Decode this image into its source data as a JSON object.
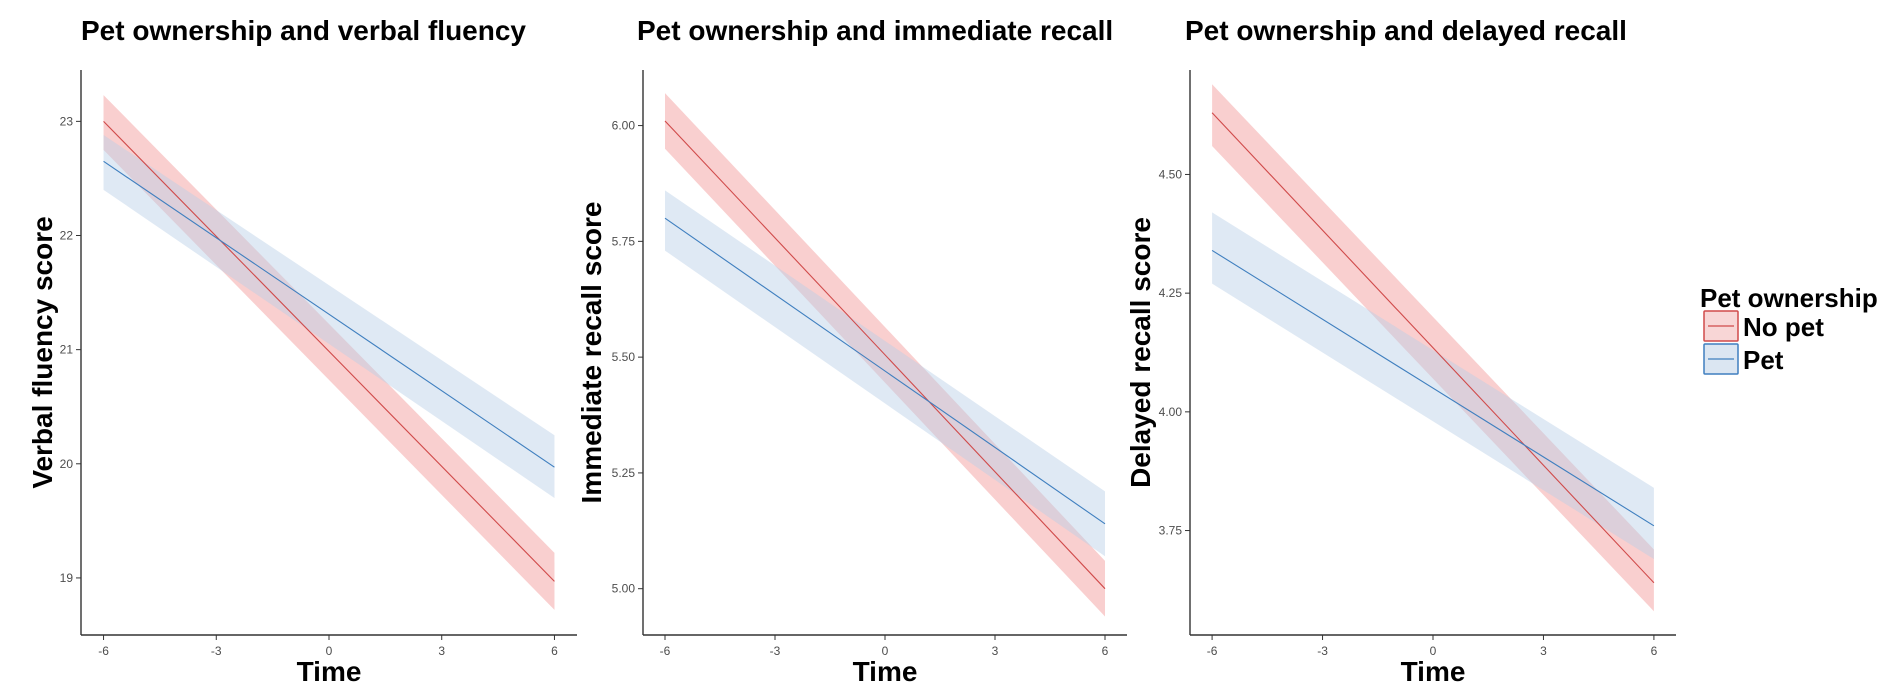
{
  "chart_data": [
    {
      "type": "line",
      "title": "Pet ownership and verbal fluency",
      "xlabel": "Time",
      "ylabel": "Verbal fluency score",
      "xlim": [
        -6.6,
        6.6
      ],
      "ylim": [
        18.5,
        23.45
      ],
      "x_ticks": [
        -6,
        -3,
        0,
        3,
        6
      ],
      "x_tick_labels": [
        "-6",
        "-3",
        "0",
        "3",
        "6"
      ],
      "y_ticks": [
        19,
        20,
        21,
        22,
        23
      ],
      "y_tick_labels": [
        "19",
        "20",
        "21",
        "22",
        "23"
      ],
      "x": [
        -6,
        6
      ],
      "series": [
        {
          "name": "No pet",
          "values": [
            23.0,
            18.97
          ],
          "lower": [
            22.75,
            18.72
          ],
          "upper": [
            23.23,
            19.22
          ]
        },
        {
          "name": "Pet",
          "values": [
            22.65,
            19.97
          ],
          "lower": [
            22.4,
            19.7
          ],
          "upper": [
            22.88,
            20.25
          ]
        }
      ]
    },
    {
      "type": "line",
      "title": "Pet ownership and immediate recall",
      "xlabel": "Time",
      "ylabel": "Immediate recall score",
      "xlim": [
        -6.6,
        6.6
      ],
      "ylim": [
        4.9,
        6.12
      ],
      "x_ticks": [
        -6,
        -3,
        0,
        3,
        6
      ],
      "x_tick_labels": [
        "-6",
        "-3",
        "0",
        "3",
        "6"
      ],
      "y_ticks": [
        5.0,
        5.25,
        5.5,
        5.75,
        6.0
      ],
      "y_tick_labels": [
        "5.00",
        "5.25",
        "5.50",
        "5.75",
        "6.00"
      ],
      "x": [
        -6,
        6
      ],
      "series": [
        {
          "name": "No pet",
          "values": [
            6.01,
            5.0
          ],
          "lower": [
            5.95,
            4.94
          ],
          "upper": [
            6.07,
            5.06
          ]
        },
        {
          "name": "Pet",
          "values": [
            5.8,
            5.14
          ],
          "lower": [
            5.73,
            5.07
          ],
          "upper": [
            5.86,
            5.21
          ]
        }
      ]
    },
    {
      "type": "line",
      "title": "Pet ownership and delayed recall",
      "xlabel": "Time",
      "ylabel": "Delayed recall score",
      "xlim": [
        -6.6,
        6.6
      ],
      "ylim": [
        3.53,
        4.72
      ],
      "x_ticks": [
        -6,
        -3,
        0,
        3,
        6
      ],
      "x_tick_labels": [
        "-6",
        "-3",
        "0",
        "3",
        "6"
      ],
      "y_ticks": [
        3.75,
        4.0,
        4.25,
        4.5
      ],
      "y_tick_labels": [
        "3.75",
        "4.00",
        "4.25",
        "4.50"
      ],
      "x": [
        -6,
        6
      ],
      "series": [
        {
          "name": "No pet",
          "values": [
            4.63,
            3.64
          ],
          "lower": [
            4.56,
            3.58
          ],
          "upper": [
            4.69,
            3.71
          ]
        },
        {
          "name": "Pet",
          "values": [
            4.34,
            3.76
          ],
          "lower": [
            4.27,
            3.69
          ],
          "upper": [
            4.42,
            3.84
          ]
        }
      ]
    }
  ],
  "legend": {
    "title": "Pet ownership",
    "items": [
      {
        "label": "No pet"
      },
      {
        "label": "Pet"
      }
    ]
  },
  "colors": {
    "no_pet_line": "#d04a4a",
    "no_pet_band": "#f4a7a7",
    "pet_line": "#3f7fbf",
    "pet_band": "#b9cfe6",
    "axis": "#333333"
  }
}
